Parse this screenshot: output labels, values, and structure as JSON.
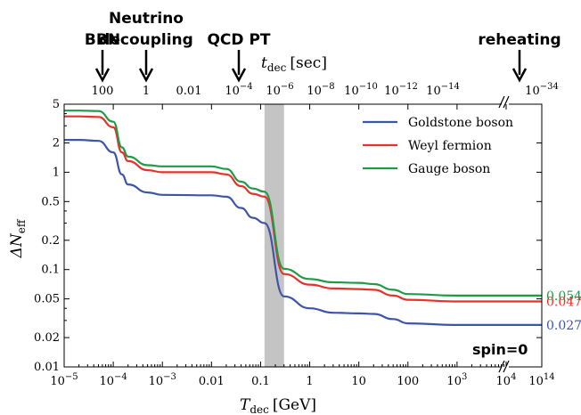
{
  "chart_data": {
    "type": "line",
    "title": "",
    "xlabel": "T_dec [GeV]",
    "xlabel_parts": {
      "symbol": "T",
      "sub": "dec",
      "unit": "[GeV]"
    },
    "ylabel": "ΔN_eff",
    "ylabel_parts": {
      "symbol": "ΔN",
      "sub": "eff"
    },
    "top_axis_label": "t_dec [sec]",
    "top_axis_parts": {
      "symbol": "t",
      "sub": "dec",
      "unit": "[sec]"
    },
    "xscale": "log",
    "yscale": "log",
    "xlim": [
      "1e-5",
      "1e14"
    ],
    "ylim": [
      0.01,
      5
    ],
    "x_axis_break": "between 1e4 and 1e14",
    "x_ticks": [
      {
        "base": "10",
        "exp": "−5"
      },
      {
        "base": "10",
        "exp": "−4"
      },
      {
        "base": "10",
        "exp": "−3"
      },
      {
        "base": "0.01",
        "exp": ""
      },
      {
        "base": "0.1",
        "exp": ""
      },
      {
        "base": "1",
        "exp": ""
      },
      {
        "base": "10",
        "exp": ""
      },
      {
        "base": "100",
        "exp": ""
      },
      {
        "base": "10",
        "exp": "3"
      },
      {
        "base": "10",
        "exp": "4"
      },
      {
        "base": "10",
        "exp": "14"
      }
    ],
    "y_ticks": [
      "0.01",
      "0.02",
      "0.05",
      "0.1",
      "0.2",
      "0.5",
      "1",
      "2",
      "5"
    ],
    "top_ticks": [
      {
        "base": "100",
        "exp": ""
      },
      {
        "base": "1",
        "exp": ""
      },
      {
        "base": "0.01",
        "exp": ""
      },
      {
        "base": "10",
        "exp": "−4"
      },
      {
        "base": "10",
        "exp": "−6"
      },
      {
        "base": "10",
        "exp": "−8"
      },
      {
        "base": "10",
        "exp": "−10"
      },
      {
        "base": "10",
        "exp": "−12"
      },
      {
        "base": "10",
        "exp": "−14"
      },
      {
        "base": "10",
        "exp": "−34"
      }
    ],
    "shaded_band": {
      "x_from": 0.12,
      "x_to": 0.3,
      "color": "#c4c4c4"
    },
    "events": [
      {
        "label": [
          "BBN"
        ],
        "t_dec": "100"
      },
      {
        "label": [
          "Neutrino",
          "decoupling"
        ],
        "t_dec": "1"
      },
      {
        "label": [
          "QCD PT"
        ],
        "t_dec": "1e-4"
      },
      {
        "label": [
          "reheating"
        ],
        "t_dec": "1e-34"
      }
    ],
    "series": [
      {
        "name": "Goldstone boson",
        "color": "#3d55a8",
        "end_label": "0.027",
        "points": [
          [
            "1e-5",
            2.15
          ],
          [
            "2e-5",
            2.15
          ],
          [
            "5e-5",
            2.1
          ],
          [
            "1e-4",
            1.6
          ],
          [
            "1.5e-4",
            0.95
          ],
          [
            "2e-4",
            0.75
          ],
          [
            "5e-4",
            0.62
          ],
          [
            "1e-3",
            0.585
          ],
          [
            "0.01",
            0.58
          ],
          [
            "0.02",
            0.56
          ],
          [
            "0.04",
            0.43
          ],
          [
            "0.07",
            0.34
          ],
          [
            "0.12",
            0.3
          ],
          [
            "0.3",
            0.053
          ],
          [
            "1",
            0.04
          ],
          [
            "3",
            0.036
          ],
          [
            "10",
            0.0355
          ],
          [
            "20",
            0.035
          ],
          [
            "50",
            0.031
          ],
          [
            "100",
            0.028
          ],
          [
            "1000",
            0.027
          ],
          [
            "1e4",
            0.027
          ],
          [
            "1e14",
            0.027
          ]
        ]
      },
      {
        "name": "Weyl fermion",
        "color": "#e5322a",
        "end_label": "0.047",
        "points": [
          [
            "1e-5",
            3.75
          ],
          [
            "2e-5",
            3.75
          ],
          [
            "5e-5",
            3.7
          ],
          [
            "1e-4",
            2.9
          ],
          [
            "1.5e-4",
            1.6
          ],
          [
            "2e-4",
            1.3
          ],
          [
            "5e-4",
            1.05
          ],
          [
            "1e-3",
            1.0
          ],
          [
            "0.01",
            1.0
          ],
          [
            "0.02",
            0.95
          ],
          [
            "0.04",
            0.72
          ],
          [
            "0.07",
            0.6
          ],
          [
            "0.12",
            0.56
          ],
          [
            "0.3",
            0.09
          ],
          [
            "1",
            0.07
          ],
          [
            "3",
            0.064
          ],
          [
            "10",
            0.063
          ],
          [
            "20",
            0.062
          ],
          [
            "50",
            0.054
          ],
          [
            "100",
            0.049
          ],
          [
            "1000",
            0.047
          ],
          [
            "1e4",
            0.047
          ],
          [
            "1e14",
            0.047
          ]
        ]
      },
      {
        "name": "Gauge boson",
        "color": "#1f9a46",
        "end_label": "0.054",
        "points": [
          [
            "1e-5",
            4.3
          ],
          [
            "2e-5",
            4.3
          ],
          [
            "5e-5",
            4.25
          ],
          [
            "1e-4",
            3.3
          ],
          [
            "1.5e-4",
            1.8
          ],
          [
            "2e-4",
            1.45
          ],
          [
            "5e-4",
            1.18
          ],
          [
            "1e-3",
            1.15
          ],
          [
            "0.01",
            1.15
          ],
          [
            "0.02",
            1.08
          ],
          [
            "0.04",
            0.8
          ],
          [
            "0.07",
            0.68
          ],
          [
            "0.12",
            0.63
          ],
          [
            "0.3",
            0.102
          ],
          [
            "1",
            0.08
          ],
          [
            "3",
            0.074
          ],
          [
            "10",
            0.073
          ],
          [
            "20",
            0.071
          ],
          [
            "50",
            0.062
          ],
          [
            "100",
            0.056
          ],
          [
            "1000",
            0.054
          ],
          [
            "1e4",
            0.054
          ],
          [
            "1e14",
            0.054
          ]
        ]
      }
    ],
    "legend_position": "top-right",
    "annotation": "spin=0",
    "grid": false
  }
}
